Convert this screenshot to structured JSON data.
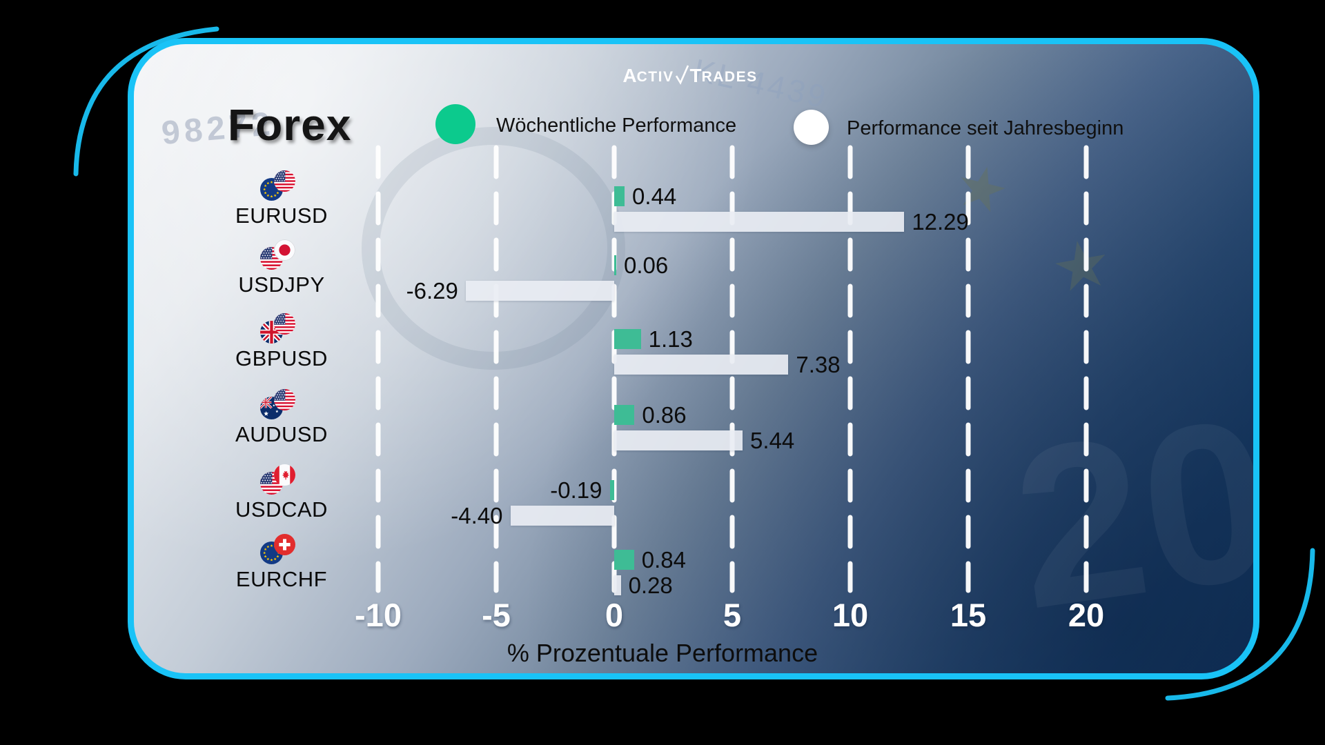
{
  "brand": {
    "name": "ActivTrades",
    "part1_big": "A",
    "part1_small": "CTIV",
    "part2_big": "T",
    "part2_small": "RADES"
  },
  "title": "Forex",
  "legend": [
    {
      "label": "Wöchentliche Performance",
      "color": "#0cca8d"
    },
    {
      "label": "Performance seit Jahresbeginn",
      "color": "#ffffff"
    }
  ],
  "colors": {
    "accent_border": "#19c3f7",
    "weekly_bar": "#3ebc95",
    "ytd_bar": "#e9edf3",
    "grid": "#ffffff",
    "value_text": "#0c0c0c",
    "tick_text": "#ffffff"
  },
  "deco_texture": {
    "serial_left": "98272",
    "serial_top": "KL 4439",
    "euro_value": "20",
    "star_glyph": "★"
  },
  "chart_data": {
    "type": "bar",
    "orientation": "horizontal",
    "title": "Forex",
    "xlabel": "% Prozentuale Performance",
    "x_ticks": [
      -10,
      -5,
      0,
      5,
      10,
      15,
      20
    ],
    "xlim": [
      -12.5,
      22.5
    ],
    "grid": "vertical dashed white lines",
    "legend_position": "top",
    "series": [
      {
        "name": "Wöchentliche Performance",
        "color": "#3ebc95"
      },
      {
        "name": "Performance seit Jahresbeginn",
        "color": "#e9edf3"
      }
    ],
    "rows": [
      {
        "pair": "EURUSD",
        "flags": [
          "EU",
          "US"
        ],
        "weekly": 0.44,
        "ytd": 12.29
      },
      {
        "pair": "USDJPY",
        "flags": [
          "US",
          "JP"
        ],
        "weekly": 0.06,
        "ytd": -6.29
      },
      {
        "pair": "GBPUSD",
        "flags": [
          "GB",
          "US"
        ],
        "weekly": 1.13,
        "ytd": 7.38
      },
      {
        "pair": "AUDUSD",
        "flags": [
          "AU",
          "US"
        ],
        "weekly": 0.86,
        "ytd": 5.44
      },
      {
        "pair": "USDCAD",
        "flags": [
          "US",
          "CA"
        ],
        "weekly": -0.19,
        "ytd": -4.4
      },
      {
        "pair": "EURCHF",
        "flags": [
          "EU",
          "CH"
        ],
        "weekly": 0.84,
        "ytd": 0.28
      }
    ]
  }
}
